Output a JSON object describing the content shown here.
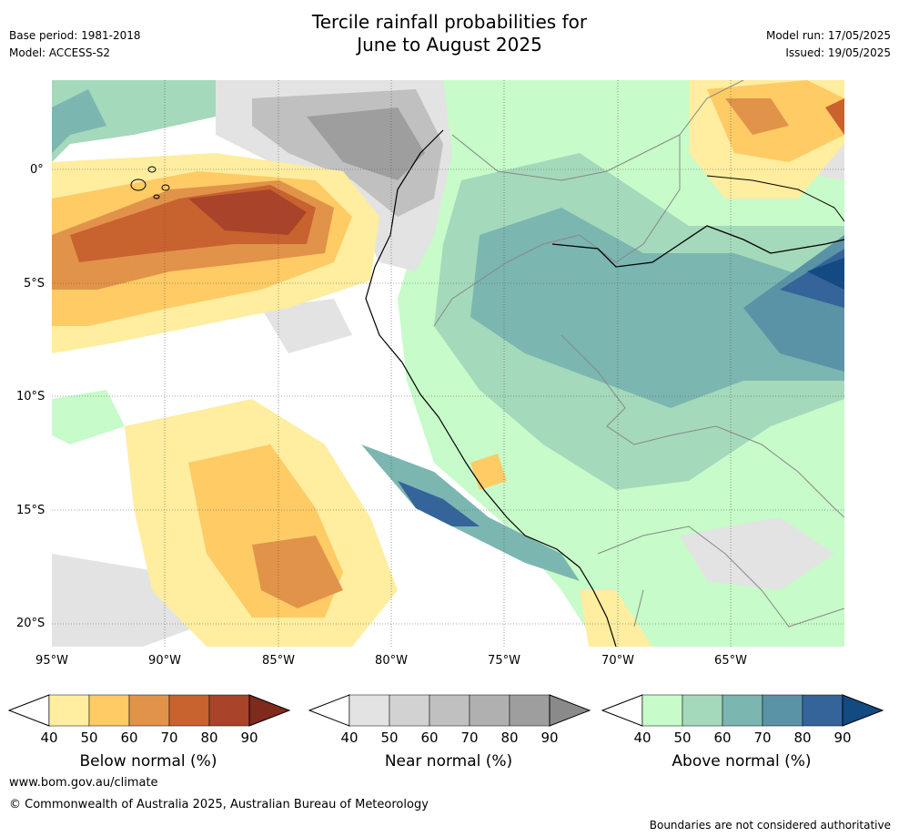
{
  "header": {
    "title_line1": "Tercile rainfall probabilities for",
    "title_line2": "June to August 2025",
    "base_period": "Base period: 1981-2018",
    "model": "Model: ACCESS-S2",
    "model_run": "Model run: 17/05/2025",
    "issued": "Issued: 19/05/2025"
  },
  "map": {
    "lat_labels": [
      "0°",
      "5°S",
      "10°S",
      "15°S",
      "20°S"
    ],
    "lon_labels": [
      "95°W",
      "90°W",
      "85°W",
      "80°W",
      "75°W",
      "70°W",
      "65°W"
    ]
  },
  "legends": [
    {
      "label": "Below normal (%)",
      "ticks": [
        "40",
        "50",
        "60",
        "70",
        "80",
        "90"
      ],
      "colors": [
        "#ffeda0",
        "#fecb65",
        "#e1934a",
        "#c8622f",
        "#a9442a",
        "#7f2a1d"
      ]
    },
    {
      "label": "Near normal (%)",
      "ticks": [
        "40",
        "50",
        "60",
        "70",
        "80",
        "90"
      ],
      "colors": [
        "#e3e3e3",
        "#d2d2d2",
        "#c0c0c0",
        "#b0b0b0",
        "#9e9e9e",
        "#8a8a8a"
      ]
    },
    {
      "label": "Above normal (%)",
      "ticks": [
        "40",
        "50",
        "60",
        "70",
        "80",
        "90"
      ],
      "colors": [
        "#c7fbc9",
        "#a4d9bb",
        "#7bb6b0",
        "#5b93a6",
        "#35649a",
        "#134a82"
      ]
    }
  ],
  "footer": {
    "url": "www.bom.gov.au/climate",
    "copyright": "© Commonwealth of Australia 2025, Australian Bureau of Meteorology",
    "disclaimer": "Boundaries are not considered authoritative"
  }
}
